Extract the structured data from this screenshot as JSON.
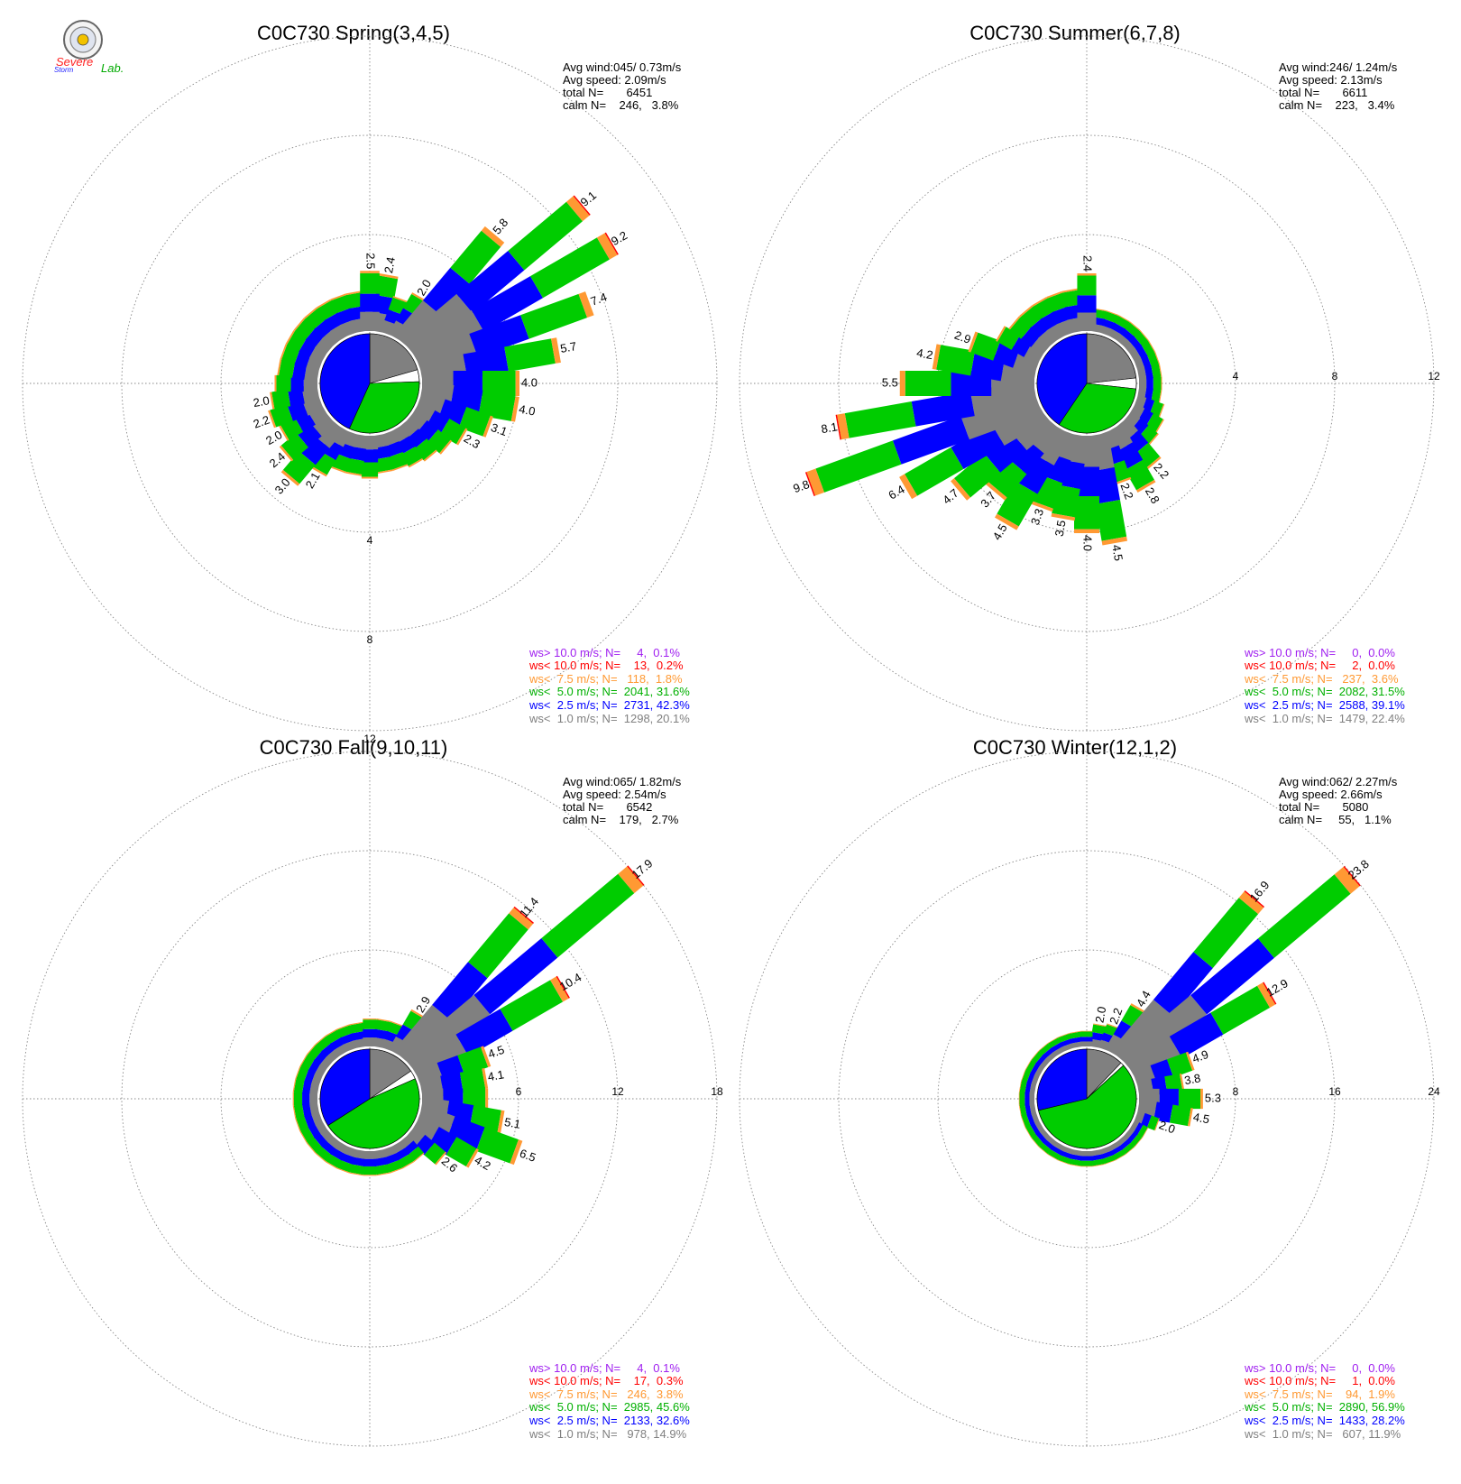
{
  "logo": {
    "line1": "Severe",
    "line2": "Storm",
    "line3": "Lab."
  },
  "colors": {
    "calm_white": "#ffffff",
    "ws_lt_1_0": "#808080",
    "ws_lt_2_5": "#0000ff",
    "ws_lt_5_0": "#00cc00",
    "ws_lt_7_5": "#ff9933",
    "ws_lt_10_0": "#ff0000",
    "ws_gt_10_0": "#a020f0"
  },
  "chart_data": [
    {
      "type": "windrose",
      "title": "C0C730 Spring(3,4,5)",
      "stats": [
        "Avg wind:045/ 0.73m/s",
        "Avg speed: 2.09m/s",
        "total N=       6451",
        "calm N=    246,   3.8%"
      ],
      "rings": [
        "4",
        "8",
        "12"
      ],
      "ring_max": 12,
      "ring_label_direction": 180,
      "pie": {
        "calm": 3.8,
        "ws_lt_1_0": 20.1,
        "ws_lt_2_5": 42.3,
        "ws_lt_5_0": 31.6
      },
      "directions_deg": [
        10,
        20,
        30,
        40,
        50,
        60,
        70,
        80,
        90,
        100,
        110,
        120,
        130,
        140,
        150,
        160,
        170,
        180,
        190,
        200,
        210,
        220,
        230,
        240,
        250,
        260,
        270,
        280,
        290,
        300,
        310,
        320,
        330,
        340,
        350,
        360
      ],
      "totals": [
        2.4,
        1.6,
        2.0,
        5.8,
        9.1,
        9.2,
        7.4,
        5.7,
        4.0,
        4.0,
        3.1,
        2.3,
        2.0,
        1.8,
        1.7,
        1.6,
        1.6,
        1.8,
        1.7,
        1.7,
        2.1,
        3.0,
        2.4,
        2.0,
        2.2,
        2.0,
        1.8,
        1.7,
        1.7,
        1.7,
        1.7,
        1.7,
        1.7,
        1.7,
        1.7,
        2.5
      ],
      "labels": {
        "10": "2.4",
        "30": "2.0",
        "40": "5.8",
        "50": "9.1",
        "60": "9.2",
        "70": "7.4",
        "80": "5.7",
        "90": "4.0",
        "100": "4.0",
        "110": "3.1",
        "120": "2.3",
        "210": "2.1",
        "220": "3.0",
        "230": "2.4",
        "240": "2.0",
        "250": "2.2",
        "260": "2.0",
        "360": "2.5"
      },
      "legend": [
        "ws> 10.0 m/s; N=     4,  0.1%",
        "ws< 10.0 m/s; N=    13,  0.2%",
        "ws<  7.5 m/s; N=   118,  1.8%",
        "ws<  5.0 m/s; N=  2041, 31.6%",
        "ws<  2.5 m/s; N=  2731, 42.3%",
        "ws<  1.0 m/s; N=  1298, 20.1%"
      ]
    },
    {
      "type": "windrose",
      "title": "C0C730 Summer(6,7,8)",
      "stats": [
        "Avg wind:246/ 1.24m/s",
        "Avg speed: 2.13m/s",
        "total N=       6611",
        "calm N=    223,   3.4%"
      ],
      "rings": [
        "4",
        "8",
        "12"
      ],
      "ring_max": 12,
      "ring_label_direction": 90,
      "pie": {
        "calm": 3.4,
        "ws_lt_1_0": 22.4,
        "ws_lt_2_5": 39.1,
        "ws_lt_5_0": 31.5
      },
      "directions_deg": [
        10,
        20,
        30,
        40,
        50,
        60,
        70,
        80,
        90,
        100,
        110,
        120,
        130,
        140,
        150,
        160,
        170,
        180,
        190,
        200,
        210,
        220,
        230,
        240,
        250,
        260,
        270,
        280,
        290,
        300,
        310,
        320,
        330,
        340,
        350,
        360
      ],
      "totals": [
        1.0,
        1.0,
        1.0,
        1.0,
        1.0,
        1.0,
        1.0,
        1.0,
        1.0,
        1.0,
        1.2,
        1.4,
        1.5,
        2.2,
        2.8,
        2.2,
        4.5,
        4.0,
        3.5,
        3.3,
        4.5,
        3.7,
        4.7,
        6.4,
        9.8,
        8.1,
        5.5,
        4.2,
        2.9,
        2.0,
        1.8,
        1.8,
        1.8,
        1.8,
        1.8,
        2.4
      ],
      "labels": {
        "140": "2.2",
        "150": "2.8",
        "160": "2.2",
        "170": "4.5",
        "180": "4.0",
        "190": "3.5",
        "200": "3.3",
        "210": "4.5",
        "220": "3.7",
        "230": "4.7",
        "240": "6.4",
        "250": "9.8",
        "260": "8.1",
        "270": "5.5",
        "280": "4.2",
        "290": "2.9",
        "360": "2.4"
      },
      "legend": [
        "ws> 10.0 m/s; N=     0,  0.0%",
        "ws< 10.0 m/s; N=     2,  0.0%",
        "ws<  7.5 m/s; N=   237,  3.6%",
        "ws<  5.0 m/s; N=  2082, 31.5%",
        "ws<  2.5 m/s; N=  2588, 39.1%",
        "ws<  1.0 m/s; N=  1479, 22.4%"
      ]
    },
    {
      "type": "windrose",
      "title": "C0C730 Fall(9,10,11)",
      "stats": [
        "Avg wind:065/ 1.82m/s",
        "Avg speed: 2.54m/s",
        "total N=       6542",
        "calm N=    179,   2.7%"
      ],
      "rings": [
        "6",
        "12",
        "18"
      ],
      "ring_max": 18,
      "ring_label_direction": 90,
      "pie": {
        "calm": 2.7,
        "ws_lt_1_0": 14.9,
        "ws_lt_2_5": 32.6,
        "ws_lt_5_0": 45.6
      },
      "directions_deg": [
        10,
        20,
        30,
        40,
        50,
        60,
        70,
        80,
        90,
        100,
        110,
        120,
        130,
        140,
        150,
        160,
        170,
        180,
        190,
        200,
        210,
        220,
        230,
        240,
        250,
        260,
        270,
        280,
        290,
        300,
        310,
        320,
        330,
        340,
        350,
        360
      ],
      "totals": [
        1.8,
        1.8,
        2.9,
        11.4,
        17.9,
        10.4,
        4.5,
        4.1,
        4.1,
        5.1,
        6.5,
        4.2,
        2.6,
        1.6,
        1.6,
        1.6,
        1.6,
        1.6,
        1.6,
        1.6,
        1.6,
        1.6,
        1.6,
        1.6,
        1.6,
        1.6,
        1.6,
        1.6,
        1.6,
        1.6,
        1.6,
        1.6,
        1.6,
        1.6,
        1.6,
        1.8
      ],
      "labels": {
        "30": "2.9",
        "40": "11.4",
        "50": "17.9",
        "60": "10.4",
        "70": "4.5",
        "80": "4.1",
        "100": "5.1",
        "110": "6.5",
        "120": "4.2",
        "130": "2.6"
      },
      "legend": [
        "ws> 10.0 m/s; N=     4,  0.1%",
        "ws< 10.0 m/s; N=    17,  0.3%",
        "ws<  7.5 m/s; N=   246,  3.8%",
        "ws<  5.0 m/s; N=  2985, 45.6%",
        "ws<  2.5 m/s; N=  2133, 32.6%",
        "ws<  1.0 m/s; N=   978, 14.9%"
      ]
    },
    {
      "type": "windrose",
      "title": "C0C730 Winter(12,1,2)",
      "stats": [
        "Avg wind:062/ 2.27m/s",
        "Avg speed: 2.66m/s",
        "total N=       5080",
        "calm N=     55,   1.1%"
      ],
      "rings": [
        "8",
        "16",
        "24"
      ],
      "ring_max": 24,
      "ring_label_direction": 90,
      "pie": {
        "calm": 1.1,
        "ws_lt_1_0": 11.9,
        "ws_lt_2_5": 28.2,
        "ws_lt_5_0": 56.9
      },
      "directions_deg": [
        10,
        20,
        30,
        40,
        50,
        60,
        70,
        80,
        90,
        100,
        110,
        120,
        130,
        140,
        150,
        160,
        170,
        180,
        190,
        200,
        210,
        220,
        230,
        240,
        250,
        260,
        270,
        280,
        290,
        300,
        310,
        320,
        330,
        340,
        350,
        360
      ],
      "totals": [
        2.0,
        2.2,
        4.4,
        16.9,
        23.8,
        12.9,
        4.9,
        3.8,
        5.3,
        4.5,
        2.0,
        1.4,
        1.4,
        1.4,
        1.4,
        1.4,
        1.4,
        1.4,
        1.4,
        1.4,
        1.4,
        1.4,
        1.4,
        1.4,
        1.4,
        1.4,
        1.4,
        1.4,
        1.4,
        1.4,
        1.4,
        1.4,
        1.4,
        1.4,
        1.4,
        1.4
      ],
      "labels": {
        "10": "2.0",
        "20": "2.2",
        "30": "4.4",
        "40": "16.9",
        "50": "23.8",
        "60": "12.9",
        "70": "4.9",
        "80": "3.8",
        "90": "5.3",
        "100": "4.5",
        "110": "2.0"
      },
      "legend": [
        "ws> 10.0 m/s; N=     0,  0.0%",
        "ws< 10.0 m/s; N=     1,  0.0%",
        "ws<  7.5 m/s; N=    94,  1.9%",
        "ws<  5.0 m/s; N=  2890, 56.9%",
        "ws<  2.5 m/s; N=  1433, 28.2%",
        "ws<  1.0 m/s; N=   607, 11.9%"
      ]
    }
  ]
}
